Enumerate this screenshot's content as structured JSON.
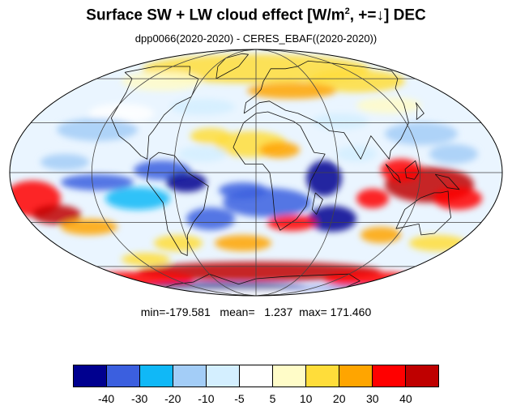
{
  "title": {
    "prefix": "Surface SW + LW cloud effect [W/m",
    "superscript": "2",
    "suffix": ", +=↓]  DEC"
  },
  "subtitle": "dpp0066(2020-2020) - CERES_EBAF((2020-2020))",
  "stats": {
    "min_label": "min=",
    "min": "-179.581",
    "mean_label": "mean=",
    "mean": "1.237",
    "max_label": "max=",
    "max": "171.460"
  },
  "map": {
    "projection": "mollweide",
    "central_longitude": 0,
    "grid_lat_step_deg": 30,
    "grid_lon_step_deg": 60
  },
  "colorbar": {
    "colors": [
      "#00008f",
      "#3b5fdf",
      "#10b8f7",
      "#a3cdf7",
      "#d4efff",
      "#ffffff",
      "#fffcc8",
      "#ffdd3a",
      "#ffa500",
      "#ff0000",
      "#bf0000"
    ],
    "tick_labels": [
      "-40",
      "-30",
      "-20",
      "-10",
      "-5",
      "5",
      "10",
      "20",
      "30",
      "40"
    ]
  }
}
